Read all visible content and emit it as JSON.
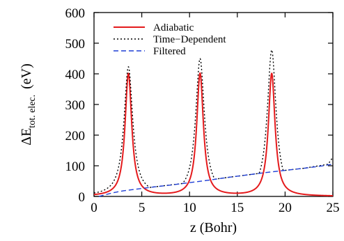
{
  "chart_data": {
    "type": "line",
    "xlabel": "z (Bohr)",
    "ylabel_main": "ΔE",
    "ylabel_sub": "tot. elec.",
    "ylabel_unit": "(eV)",
    "xlim": [
      0,
      25
    ],
    "ylim": [
      0,
      600
    ],
    "x_ticks": [
      0,
      5,
      10,
      15,
      20,
      25
    ],
    "y_ticks": [
      0,
      100,
      200,
      300,
      400,
      500,
      600
    ],
    "grid": false,
    "legend_position": "top-left",
    "series": [
      {
        "name": "Adiabatic",
        "color": "#e41a1c",
        "style": "solid",
        "model": "peaks",
        "peaks": [
          3.6,
          11.1,
          18.6
        ],
        "peak_height": 400,
        "half_width": 0.42
      },
      {
        "name": "Time−Dependent",
        "color": "#000000",
        "style": "dotted",
        "model": "peaks",
        "peaks": [
          3.6,
          11.1,
          18.6
        ],
        "peak_heights": [
          420,
          445,
          475
        ],
        "half_width": 0.55,
        "baseline_points": [
          [
            0.5,
            0
          ],
          [
            2.0,
            15
          ],
          [
            6.0,
            30
          ],
          [
            10.0,
            45
          ],
          [
            14.0,
            62
          ],
          [
            18.0,
            78
          ],
          [
            22.0,
            92
          ],
          [
            24.5,
            105
          ],
          [
            25.0,
            128
          ]
        ]
      },
      {
        "name": "Filtered",
        "color": "#1f3fd6",
        "style": "dashed",
        "model": "points",
        "points": [
          [
            0.5,
            0
          ],
          [
            1.0,
            4
          ],
          [
            2.0,
            12
          ],
          [
            3.0,
            18
          ],
          [
            4.0,
            22
          ],
          [
            6.0,
            30
          ],
          [
            8.0,
            37
          ],
          [
            10.0,
            45
          ],
          [
            12.0,
            53
          ],
          [
            14.0,
            62
          ],
          [
            16.0,
            70
          ],
          [
            18.0,
            78
          ],
          [
            20.0,
            85
          ],
          [
            22.0,
            92
          ],
          [
            24.0,
            100
          ],
          [
            24.5,
            103
          ],
          [
            25.0,
            105
          ]
        ]
      }
    ]
  }
}
